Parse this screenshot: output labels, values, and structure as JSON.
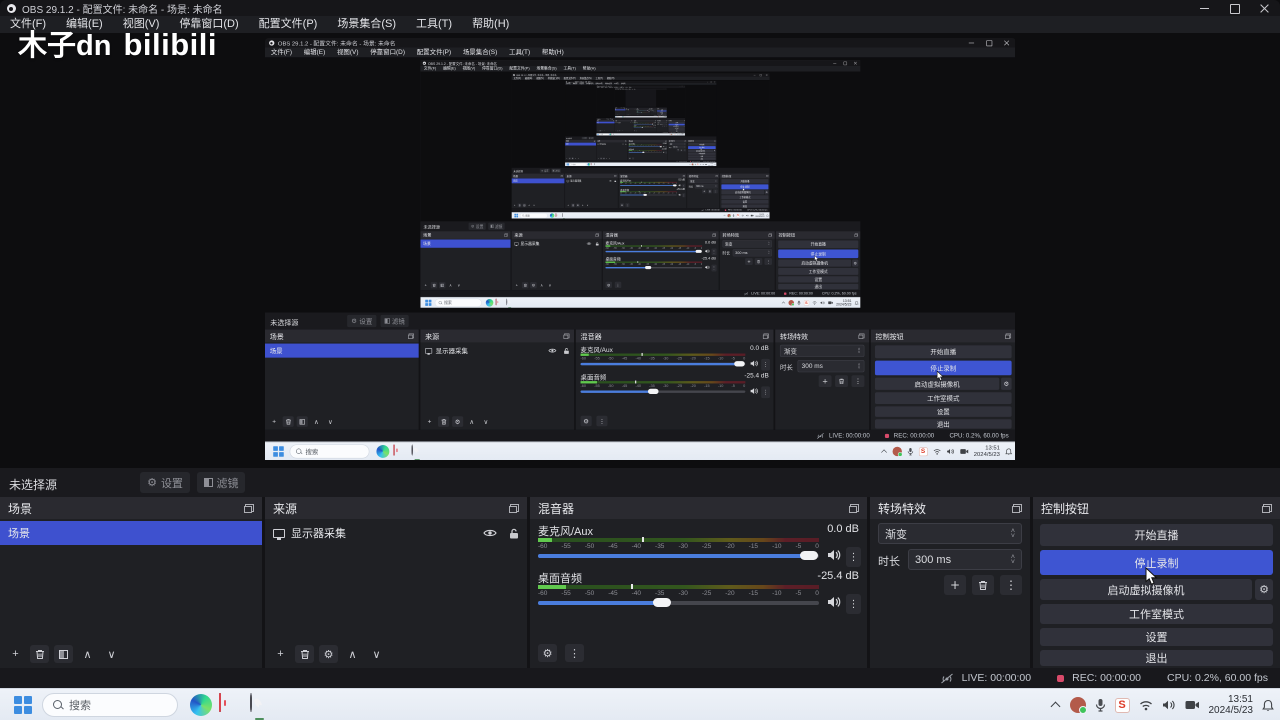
{
  "window": {
    "title": "OBS 29.1.2 - 配置文件: 未命名 - 场景: 未命名"
  },
  "watermark": {
    "text_cn": "木子dn",
    "text_logo": "bilibili"
  },
  "menu": {
    "items": [
      "文件(F)",
      "编辑(E)",
      "视图(V)",
      "停靠窗口(D)",
      "配置文件(P)",
      "场景集合(S)",
      "工具(T)",
      "帮助(H)"
    ]
  },
  "source_toolbar": {
    "no_source_label": "未选择源",
    "settings_label": "设置",
    "filters_label": "滤镜"
  },
  "panels": {
    "scenes": {
      "title": "场景",
      "items": [
        {
          "label": "场景",
          "selected": true
        }
      ]
    },
    "sources": {
      "title": "来源",
      "items": [
        {
          "label": "显示器采集"
        }
      ]
    },
    "mixer": {
      "title": "混音器",
      "channels": [
        {
          "name": "麦克风/Aux",
          "db": "0.0 dB",
          "volume_pos": 0.965,
          "meter_level": 0.05,
          "peak_pos": 0.37
        },
        {
          "name": "桌面音频",
          "db": "-25.4 dB",
          "volume_pos": 0.44,
          "meter_level": 0.1,
          "peak_pos": 0.33
        }
      ],
      "scale_ticks": [
        "-60",
        "-55",
        "-50",
        "-45",
        "-40",
        "-35",
        "-30",
        "-25",
        "-20",
        "-15",
        "-10",
        "-5",
        "0"
      ]
    },
    "transitions": {
      "title": "转场特效",
      "transition": "渐变",
      "duration_label": "时长",
      "duration_value": "300 ms"
    },
    "controls": {
      "title": "控制按钮",
      "buttons": [
        "开始直播",
        "停止录制",
        "启动虚拟摄像机",
        "工作室模式",
        "设置",
        "退出"
      ]
    }
  },
  "status": {
    "live_label": "LIVE: 00:00:00",
    "rec_label": "REC: 00:00:00",
    "cpu_label": "CPU: 0.2%, 60.00 fps"
  },
  "taskbar": {
    "search_placeholder": "搜索",
    "time": "13:51",
    "date": "2024/5/23"
  },
  "icons": {
    "gear": "⚙",
    "dots_vertical": "⋮",
    "plus": "+",
    "up": "∧",
    "down": "∨"
  },
  "colors": {
    "accent_blue": "#3e51cf",
    "button_blue": "#3e55d2",
    "rec_dot": "#d84a6a",
    "taskbar_bg": "#e8edf5"
  }
}
